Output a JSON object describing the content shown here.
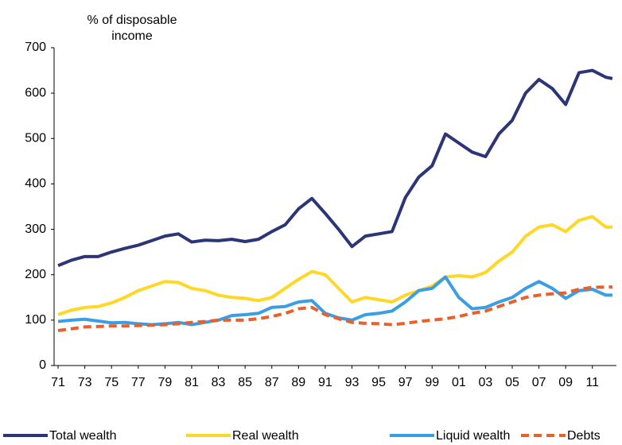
{
  "chart_data": {
    "type": "line",
    "y_label": "% of disposable income",
    "x": [
      1971,
      1972,
      1973,
      1974,
      1975,
      1976,
      1977,
      1978,
      1979,
      1980,
      1981,
      1982,
      1983,
      1984,
      1985,
      1986,
      1987,
      1988,
      1989,
      1990,
      1991,
      1992,
      1993,
      1994,
      1995,
      1996,
      1997,
      1998,
      1999,
      2000,
      2001,
      2002,
      2003,
      2004,
      2005,
      2006,
      2007,
      2008,
      2009,
      2010,
      2011,
      2012,
      2012.5
    ],
    "series": [
      {
        "name": "Total wealth",
        "color": "#2b3577",
        "dash": false,
        "values": [
          220,
          232,
          240,
          240,
          250,
          258,
          265,
          275,
          285,
          290,
          272,
          276,
          275,
          278,
          273,
          278,
          295,
          310,
          345,
          368,
          335,
          300,
          262,
          285,
          290,
          295,
          370,
          415,
          440,
          510,
          490,
          470,
          460,
          510,
          540,
          600,
          630,
          610,
          575,
          645,
          650,
          635,
          632
        ]
      },
      {
        "name": "Real wealth",
        "color": "#ffd724",
        "dash": false,
        "values": [
          112,
          122,
          128,
          130,
          138,
          150,
          165,
          175,
          185,
          183,
          170,
          165,
          155,
          150,
          148,
          143,
          150,
          170,
          190,
          207,
          200,
          170,
          140,
          150,
          145,
          140,
          155,
          165,
          175,
          195,
          198,
          195,
          205,
          230,
          250,
          285,
          305,
          310,
          295,
          320,
          328,
          305,
          305
        ]
      },
      {
        "name": "Liquid wealth",
        "color": "#3a9ee6",
        "dash": false,
        "values": [
          97,
          100,
          102,
          98,
          94,
          95,
          92,
          90,
          92,
          95,
          90,
          95,
          100,
          110,
          112,
          115,
          128,
          130,
          140,
          143,
          115,
          105,
          100,
          112,
          115,
          120,
          140,
          165,
          170,
          195,
          150,
          125,
          128,
          140,
          150,
          170,
          185,
          170,
          148,
          165,
          168,
          155,
          155
        ]
      },
      {
        "name": "Debts",
        "color": "#e8602a",
        "dash": true,
        "values": [
          77,
          81,
          85,
          86,
          87,
          87,
          88,
          89,
          90,
          92,
          95,
          97,
          100,
          100,
          100,
          103,
          108,
          115,
          125,
          128,
          112,
          103,
          95,
          93,
          92,
          90,
          93,
          97,
          100,
          103,
          108,
          115,
          120,
          130,
          140,
          150,
          155,
          158,
          160,
          168,
          172,
          173,
          173
        ]
      }
    ],
    "xlim": [
      1970.7,
      2012.8
    ],
    "ylim": [
      0,
      700
    ],
    "yticks": [
      0,
      100,
      200,
      300,
      400,
      500,
      600,
      700
    ],
    "xticks": [
      {
        "value": 1971,
        "label": "71"
      },
      {
        "value": 1973,
        "label": "73"
      },
      {
        "value": 1975,
        "label": "75"
      },
      {
        "value": 1977,
        "label": "77"
      },
      {
        "value": 1979,
        "label": "79"
      },
      {
        "value": 1981,
        "label": "81"
      },
      {
        "value": 1983,
        "label": "83"
      },
      {
        "value": 1985,
        "label": "85"
      },
      {
        "value": 1987,
        "label": "87"
      },
      {
        "value": 1989,
        "label": "89"
      },
      {
        "value": 1991,
        "label": "91"
      },
      {
        "value": 1993,
        "label": "93"
      },
      {
        "value": 1995,
        "label": "95"
      },
      {
        "value": 1997,
        "label": "97"
      },
      {
        "value": 1999,
        "label": "99"
      },
      {
        "value": 2001,
        "label": "01"
      },
      {
        "value": 2003,
        "label": "03"
      },
      {
        "value": 2005,
        "label": "05"
      },
      {
        "value": 2007,
        "label": "07"
      },
      {
        "value": 2009,
        "label": "09"
      },
      {
        "value": 2011,
        "label": "11"
      }
    ],
    "grid": false,
    "legend": "bottom"
  }
}
